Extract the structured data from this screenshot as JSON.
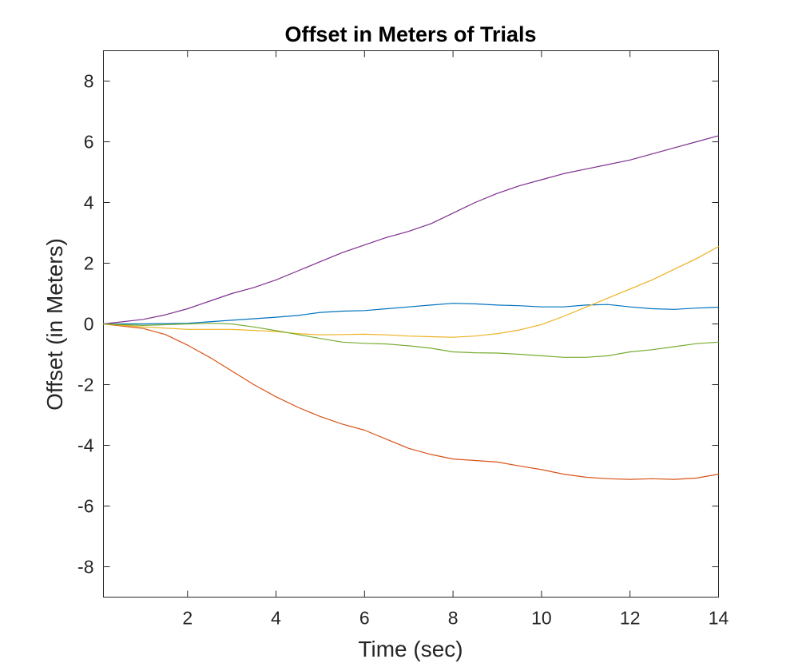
{
  "chart_data": {
    "type": "line",
    "title": "Offset in Meters of Trials",
    "xlabel": "Time (sec)",
    "ylabel": "Offset (in Meters)",
    "xlim": [
      0.1,
      14
    ],
    "ylim": [
      -9,
      9
    ],
    "xticks": [
      2,
      4,
      6,
      8,
      10,
      12,
      14
    ],
    "yticks": [
      -8,
      -6,
      -4,
      -2,
      0,
      2,
      4,
      6,
      8
    ],
    "grid": false,
    "series": [
      {
        "color": "#0072BD",
        "x": [
          0.1,
          1,
          2,
          3,
          4,
          4.5,
          5,
          5.5,
          6,
          6.5,
          7,
          7.5,
          8,
          8.5,
          9,
          9.5,
          10,
          10.5,
          11,
          11.5,
          12,
          12.5,
          13,
          13.5,
          14
        ],
        "y": [
          0,
          0,
          0.02,
          0.12,
          0.22,
          0.28,
          0.38,
          0.42,
          0.44,
          0.5,
          0.56,
          0.62,
          0.68,
          0.66,
          0.62,
          0.6,
          0.56,
          0.56,
          0.62,
          0.64,
          0.56,
          0.5,
          0.48,
          0.52,
          0.55
        ]
      },
      {
        "color": "#D95319",
        "x": [
          0.1,
          1,
          1.5,
          2,
          2.5,
          3,
          3.5,
          4,
          4.5,
          5,
          5.5,
          6,
          6.5,
          7,
          7.5,
          8,
          8.5,
          9,
          9.5,
          10,
          10.5,
          11,
          11.5,
          12,
          12.5,
          13,
          13.5,
          14
        ],
        "y": [
          0,
          -0.15,
          -0.35,
          -0.7,
          -1.1,
          -1.55,
          -2.0,
          -2.4,
          -2.75,
          -3.05,
          -3.3,
          -3.5,
          -3.8,
          -4.1,
          -4.3,
          -4.45,
          -4.5,
          -4.55,
          -4.68,
          -4.8,
          -4.95,
          -5.05,
          -5.1,
          -5.12,
          -5.1,
          -5.12,
          -5.08,
          -4.95
        ]
      },
      {
        "color": "#EDB120",
        "x": [
          0.1,
          1,
          2,
          3,
          4,
          4.5,
          5,
          5.5,
          6,
          6.5,
          7,
          7.5,
          8,
          8.5,
          9,
          9.5,
          10,
          10.5,
          11,
          11.5,
          12,
          12.5,
          13,
          13.5,
          14
        ],
        "y": [
          0,
          -0.1,
          -0.18,
          -0.18,
          -0.25,
          -0.32,
          -0.36,
          -0.35,
          -0.34,
          -0.36,
          -0.4,
          -0.42,
          -0.44,
          -0.4,
          -0.32,
          -0.2,
          -0.02,
          0.25,
          0.55,
          0.85,
          1.15,
          1.45,
          1.8,
          2.15,
          2.55
        ]
      },
      {
        "color": "#7E2F8E",
        "x": [
          0.1,
          1,
          1.5,
          2,
          2.5,
          3,
          3.5,
          4,
          4.5,
          5,
          5.5,
          6,
          6.5,
          7,
          7.5,
          8,
          8.5,
          9,
          9.5,
          10,
          10.5,
          11,
          11.5,
          12,
          12.5,
          13,
          13.5,
          14
        ],
        "y": [
          0,
          0.15,
          0.3,
          0.5,
          0.75,
          1.0,
          1.2,
          1.45,
          1.75,
          2.05,
          2.35,
          2.6,
          2.85,
          3.05,
          3.3,
          3.65,
          4.0,
          4.3,
          4.55,
          4.75,
          4.95,
          5.1,
          5.25,
          5.4,
          5.6,
          5.8,
          6.0,
          6.2
        ]
      },
      {
        "color": "#77AC30",
        "x": [
          0.1,
          1,
          2,
          2.5,
          3,
          3.5,
          4,
          4.5,
          5,
          5.5,
          6,
          6.5,
          7,
          7.5,
          8,
          8.5,
          9,
          9.5,
          10,
          10.5,
          11,
          11.5,
          12,
          12.5,
          13,
          13.5,
          14
        ],
        "y": [
          0,
          -0.05,
          0.0,
          0.02,
          0.0,
          -0.1,
          -0.22,
          -0.35,
          -0.48,
          -0.6,
          -0.64,
          -0.66,
          -0.72,
          -0.8,
          -0.92,
          -0.95,
          -0.96,
          -1.0,
          -1.05,
          -1.1,
          -1.1,
          -1.05,
          -0.92,
          -0.85,
          -0.75,
          -0.65,
          -0.6
        ]
      }
    ]
  }
}
